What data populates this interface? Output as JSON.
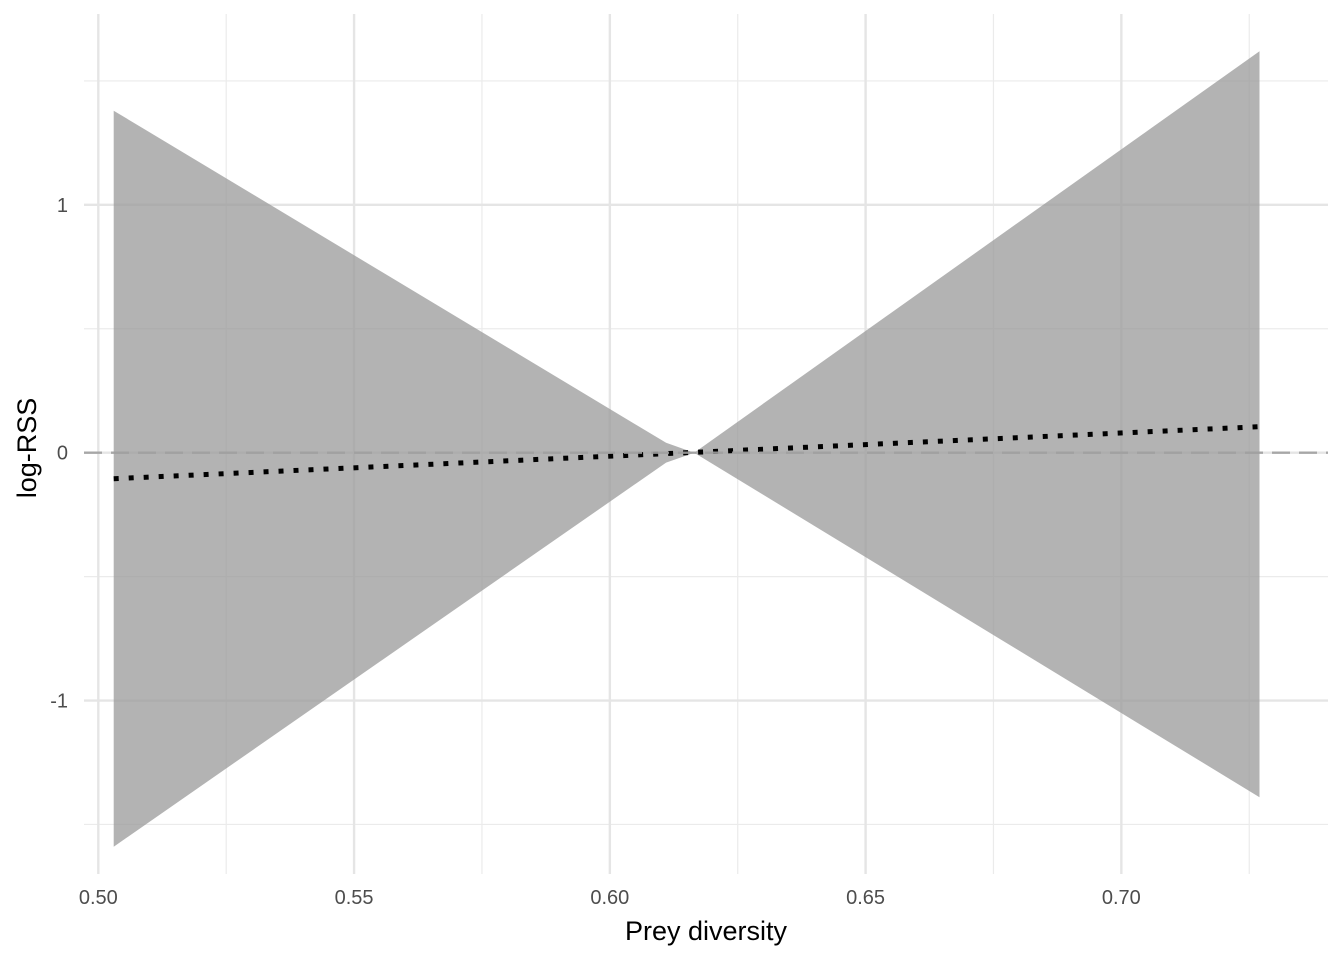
{
  "chart_data": {
    "type": "area",
    "title": "",
    "xlabel": "Prey diversity",
    "ylabel": "log-RSS",
    "xlim": [
      0.4972,
      0.7404
    ],
    "ylim": [
      -1.7,
      1.77
    ],
    "x_ticks": [
      "0.50",
      "0.55",
      "0.60",
      "0.65",
      "0.70"
    ],
    "y_ticks": [
      "-1",
      "0",
      "1"
    ],
    "grid": true,
    "legend": "none",
    "reference_line": {
      "y": 0,
      "style": "dashed",
      "color": "#a0a0a0"
    },
    "series": [
      {
        "type": "ribbon",
        "fill": "#999999",
        "opacity": 0.75,
        "x": [
          0.503,
          0.611,
          0.6165,
          0.727
        ],
        "lower": [
          -1.59,
          -0.04,
          0.0,
          -1.39
        ],
        "upper": [
          1.38,
          0.04,
          0.0,
          1.62
        ]
      },
      {
        "type": "line",
        "style": "dotted",
        "color": "#000000",
        "x": [
          0.503,
          0.727
        ],
        "y": [
          -0.105,
          0.105
        ]
      }
    ]
  }
}
